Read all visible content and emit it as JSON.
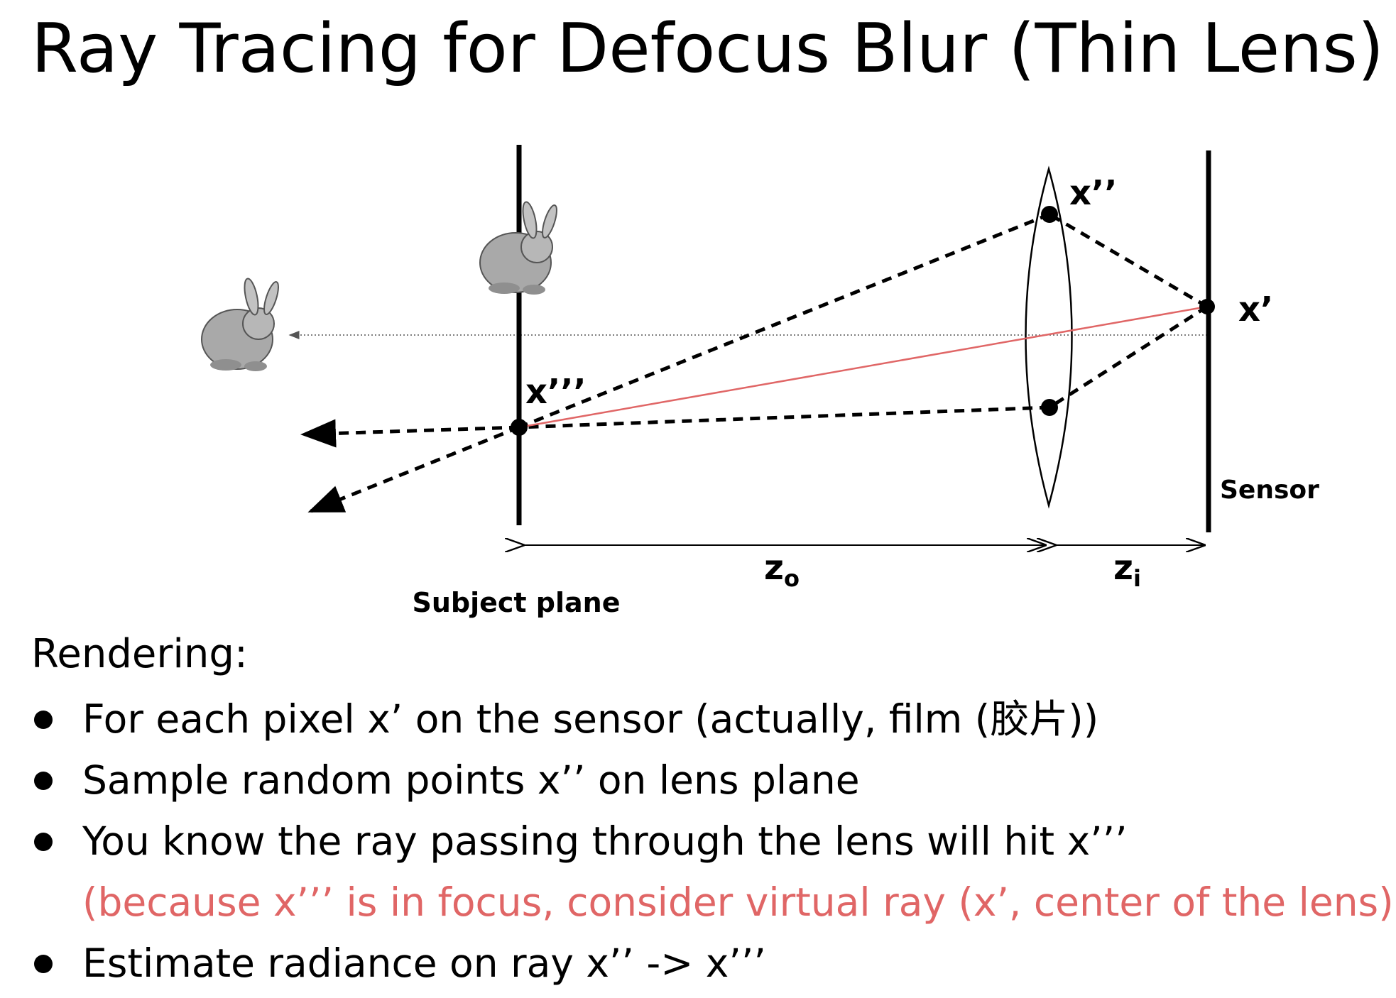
{
  "title": "Ray Tracing for Defocus Blur (Thin Lens)",
  "diagram": {
    "labels": {
      "x_triple": "x’’’",
      "x_double": "x’’",
      "x_prime": "x’",
      "sensor": "Sensor",
      "subject_plane": "Subject plane",
      "z_o_base": "z",
      "z_o_sub": "o",
      "z_i_base": "z",
      "z_i_sub": "i"
    },
    "colors": {
      "ray": "#000000",
      "virtual_ray": "#e06666",
      "axis": "#555555"
    }
  },
  "rendering_heading": "Rendering:",
  "bullets": [
    {
      "text": "For each pixel x’ on the sensor (actually, film (胶片))"
    },
    {
      "text": "Sample random points x’’ on lens plane"
    },
    {
      "text": "You know the ray passing through the lens will hit x’’’",
      "note": "(because x’’’ is in focus, consider virtual ray (x’, center of the lens))"
    },
    {
      "text": "Estimate radiance on ray x’’ -> x’’’"
    }
  ]
}
